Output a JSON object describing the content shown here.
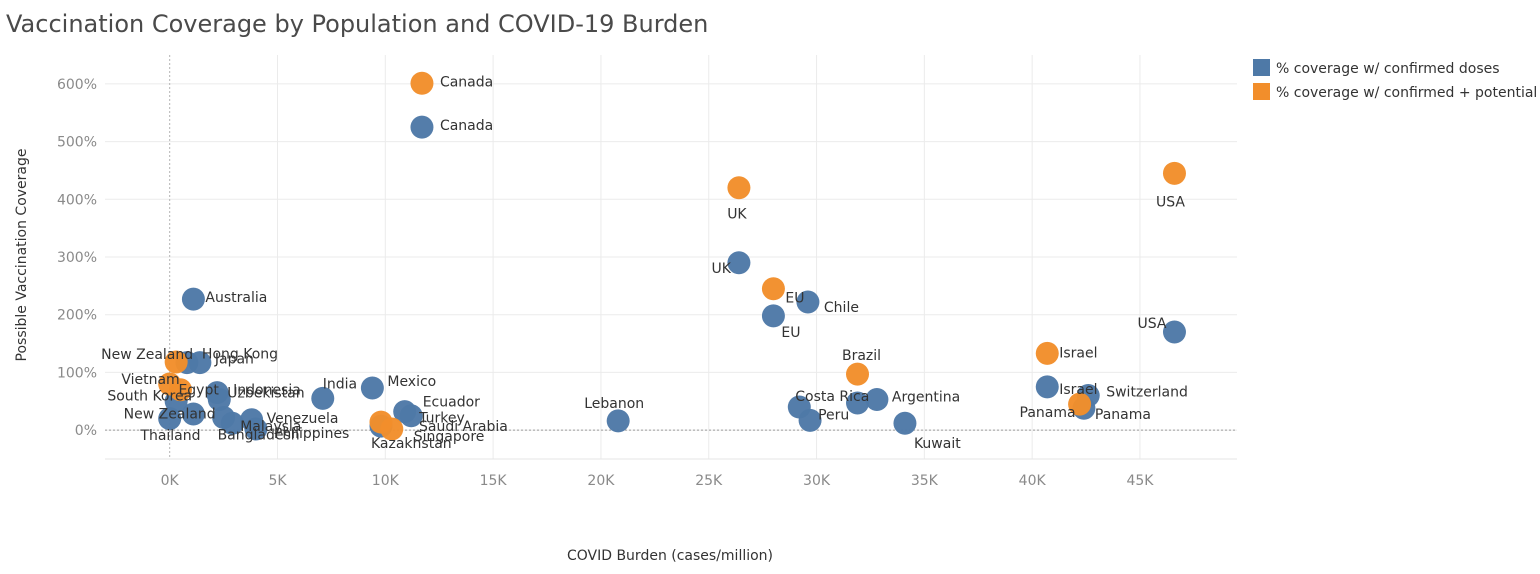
{
  "chart_data": {
    "type": "scatter",
    "title": "Vaccination Coverage by Population and COVID-19 Burden",
    "xlabel": "COVID Burden (cases/million)",
    "ylabel": "Possible Vaccination Coverage",
    "xlim": [
      -3000,
      49500
    ],
    "ylim": [
      -50,
      650
    ],
    "x_ticks": [
      0,
      5000,
      10000,
      15000,
      20000,
      25000,
      30000,
      35000,
      40000,
      45000
    ],
    "x_tick_labels": [
      "0K",
      "5K",
      "10K",
      "15K",
      "20K",
      "25K",
      "30K",
      "35K",
      "40K",
      "45K"
    ],
    "y_ticks": [
      0,
      100,
      200,
      300,
      400,
      500,
      600
    ],
    "y_tick_labels": [
      "0%",
      "100%",
      "200%",
      "300%",
      "400%",
      "500%",
      "600%"
    ],
    "grid": true,
    "legend_position": "top-right",
    "series": [
      {
        "name": "% coverage w/ confirmed doses",
        "color": "#4e79a7",
        "points": [
          {
            "label": "Canada",
            "x": 11700,
            "y": 525
          },
          {
            "label": "UK",
            "x": 26400,
            "y": 290
          },
          {
            "label": "Chile",
            "x": 29600,
            "y": 222
          },
          {
            "label": "EU",
            "x": 28000,
            "y": 198
          },
          {
            "label": "Australia",
            "x": 1100,
            "y": 227
          },
          {
            "label": "USA",
            "x": 46600,
            "y": 170
          },
          {
            "label": "Hong Kong",
            "x": 800,
            "y": 117
          },
          {
            "label": "Japan",
            "x": 1400,
            "y": 117
          },
          {
            "label": "Israel",
            "x": 40700,
            "y": 75
          },
          {
            "label": "Switzerland",
            "x": 42600,
            "y": 60
          },
          {
            "label": "Panama",
            "x": 42400,
            "y": 38
          },
          {
            "label": "Mexico",
            "x": 9400,
            "y": 73
          },
          {
            "label": "India",
            "x": 7100,
            "y": 55
          },
          {
            "label": "Indonesia",
            "x": 2200,
            "y": 65
          },
          {
            "label": "Uzbekistan",
            "x": 2300,
            "y": 53
          },
          {
            "label": "South Korea",
            "x": 300,
            "y": 50
          },
          {
            "label": "New Zealand",
            "x": 0,
            "y": 20
          },
          {
            "label": "Thailand",
            "x": 1100,
            "y": 28
          },
          {
            "label": "Venezuela",
            "x": 3800,
            "y": 18
          },
          {
            "label": "Malaysia",
            "x": 2900,
            "y": 12
          },
          {
            "label": "Bangladesh",
            "x": 2500,
            "y": 22
          },
          {
            "label": "Philippines",
            "x": 4000,
            "y": 2
          },
          {
            "label": "Ecuador",
            "x": 10900,
            "y": 32
          },
          {
            "label": "Turkey",
            "x": 11200,
            "y": 25
          },
          {
            "label": "Kazakhstan",
            "x": 9800,
            "y": 7
          },
          {
            "label": "Lebanon",
            "x": 20800,
            "y": 16
          },
          {
            "label": "Costa Rica",
            "x": 29200,
            "y": 40
          },
          {
            "label": "Peru",
            "x": 29700,
            "y": 17
          },
          {
            "label": "Brazil",
            "x": 31900,
            "y": 47
          },
          {
            "label": "Argentina",
            "x": 32800,
            "y": 53
          },
          {
            "label": "Kuwait",
            "x": 34100,
            "y": 12
          }
        ]
      },
      {
        "name": "% coverage w/ confirmed + potential",
        "color": "#f28e2b",
        "points": [
          {
            "label": "Canada",
            "x": 11700,
            "y": 601
          },
          {
            "label": "UK",
            "x": 26400,
            "y": 420
          },
          {
            "label": "USA",
            "x": 46600,
            "y": 445
          },
          {
            "label": "EU",
            "x": 28000,
            "y": 245
          },
          {
            "label": "Israel",
            "x": 40700,
            "y": 133
          },
          {
            "label": "Brazil",
            "x": 31900,
            "y": 97
          },
          {
            "label": "New Zealand",
            "x": 300,
            "y": 118
          },
          {
            "label": "Vietnam",
            "x": 0,
            "y": 80
          },
          {
            "label": "Egypt",
            "x": 500,
            "y": 70
          },
          {
            "label": "Saudi Arabia",
            "x": 9800,
            "y": 14
          },
          {
            "label": "Singapore",
            "x": 10300,
            "y": 2
          },
          {
            "label": "Panama",
            "x": 42200,
            "y": 45
          }
        ]
      }
    ],
    "annotations": [
      {
        "text": "Canada",
        "near": "Canada",
        "series": 1
      },
      {
        "text": "Canada",
        "near": "Canada",
        "series": 0
      },
      {
        "text": "UK",
        "near": "UK",
        "series": 1
      },
      {
        "text": "USA",
        "near": "USA",
        "series": 1
      },
      {
        "text": "UK",
        "near": "UK",
        "series": 0
      },
      {
        "text": "EU",
        "near": "EU",
        "series": 1
      },
      {
        "text": "Chile",
        "near": "Chile",
        "series": 0
      },
      {
        "text": "EU",
        "near": "EU",
        "series": 0
      },
      {
        "text": "USA",
        "near": "USA",
        "series": 0
      },
      {
        "text": "Australia",
        "near": "Australia",
        "series": 0
      },
      {
        "text": "New Zealand",
        "near": "New Zealand",
        "series": 1
      },
      {
        "text": "Hong Kong",
        "near": "Hong Kong",
        "series": 0
      },
      {
        "text": "Japan",
        "near": "Japan",
        "series": 0
      },
      {
        "text": "Vietnam",
        "near": "Vietnam",
        "series": 1
      },
      {
        "text": "Egypt",
        "near": "Egypt",
        "series": 1
      },
      {
        "text": "South Korea",
        "near": "South Korea",
        "series": 0
      },
      {
        "text": "Indonesia",
        "near": "Indonesia",
        "series": 0
      },
      {
        "text": "Uzbekistan",
        "near": "Uzbekistan",
        "series": 0
      },
      {
        "text": "India",
        "near": "India",
        "series": 0
      },
      {
        "text": "Mexico",
        "near": "Mexico",
        "series": 0
      },
      {
        "text": "New Zealand",
        "near": "New Zealand",
        "series": 0
      },
      {
        "text": "Thailand",
        "near": "Thailand",
        "series": 0
      },
      {
        "text": "Venezuela",
        "near": "Venezuela",
        "series": 0
      },
      {
        "text": "Malaysia",
        "near": "Malaysia",
        "series": 0
      },
      {
        "text": "Bangladesh",
        "near": "Bangladesh",
        "series": 0
      },
      {
        "text": "Philippines",
        "near": "Philippines",
        "series": 0
      },
      {
        "text": "Ecuador",
        "near": "Ecuador",
        "series": 0
      },
      {
        "text": "Turkey",
        "near": "Turkey",
        "series": 0
      },
      {
        "text": "Saudi Arabia",
        "near": "Saudi Arabia",
        "series": 1
      },
      {
        "text": "Singapore",
        "near": "Singapore",
        "series": 1
      },
      {
        "text": "Kazakhstan",
        "near": "Kazakhstan",
        "series": 0
      },
      {
        "text": "Lebanon",
        "near": "Lebanon",
        "series": 0
      },
      {
        "text": "Brazil",
        "near": "Brazil",
        "series": 1
      },
      {
        "text": "Costa Rica",
        "near": "Costa Rica",
        "series": 0
      },
      {
        "text": "Argentina",
        "near": "Argentina",
        "series": 0
      },
      {
        "text": "Peru",
        "near": "Peru",
        "series": 0
      },
      {
        "text": "Kuwait",
        "near": "Kuwait",
        "series": 0
      },
      {
        "text": "Israel",
        "near": "Israel",
        "series": 1
      },
      {
        "text": "Israel",
        "near": "Israel",
        "series": 0
      },
      {
        "text": "Switzerland",
        "near": "Switzerland",
        "series": 0
      },
      {
        "text": "Panama",
        "near": "Panama",
        "series": 1
      },
      {
        "text": "Panama",
        "near": "Panama",
        "series": 0
      }
    ]
  }
}
